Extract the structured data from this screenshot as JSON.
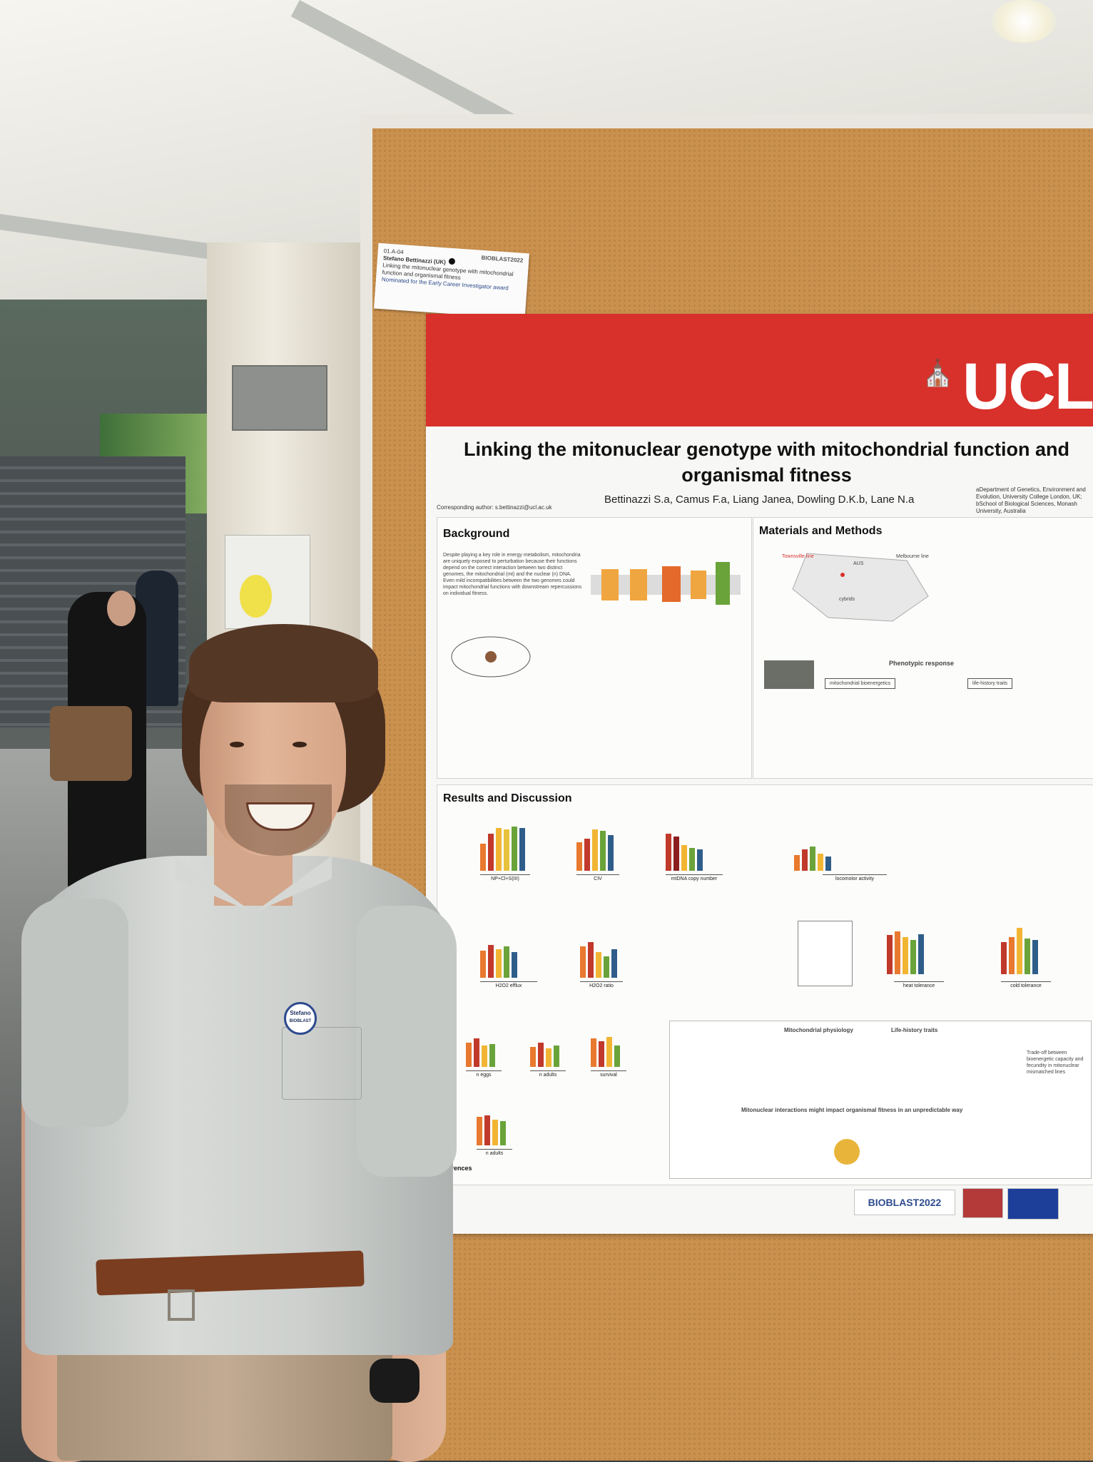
{
  "scene": {
    "description_colors": {
      "cork": "#c9904e",
      "poster_red": "#d8302a",
      "shirt": "#cdd0cd"
    }
  },
  "label_card": {
    "code": "01.A-04",
    "name": "Stefano Bettinazzi (UK)",
    "title_line": "Linking the mitonuclear genotype with mitochondrial function and organismal fitness",
    "award": "Nominated for the Early Career Investigator award",
    "logo": "BIOBLAST2022"
  },
  "poster": {
    "institution": "UCL",
    "title": "Linking the mitonuclear genotype with mitochondrial function and organismal fitness",
    "authors": "Bettinazzi S.a, Camus F.a, Liang Janea, Dowling D.K.b, Lane N.a",
    "contact": "Corresponding author: s.bettinazzi@ucl.ac.uk",
    "affiliation": "aDepartment of Genetics, Environment and Evolution, University College London, UK; bSchool of Biological Sciences, Monash University, Australia",
    "sections": {
      "background": {
        "heading": "Background",
        "text": "Despite playing a key role in energy metabolism, mitochondria are uniquely exposed to perturbation because their functions depend on the correct interaction between two distinct genomes, the mitochondrial (mt) and the nuclear (n) DNA. Even mild incompatibilities between the two genomes could impact mitochondrial functions with downstream repercussions on individual fitness."
      },
      "methods": {
        "heading": "Materials and Methods",
        "labels": [
          "Townsville line",
          "AUS",
          "Melbourne line",
          "cybrids",
          "Phenotypic response",
          "mitochondrial bioenergetics",
          "life-history traits"
        ]
      },
      "results": {
        "heading": "Results and Discussion",
        "panel_labels": [
          "NP+Cl+S(III)",
          "CIV",
          "mtDNA copy number",
          "locomotor activity",
          "H2O2 efflux",
          "H2O2 ratio",
          "heat tolerance",
          "cold tolerance",
          "n eggs",
          "n adults",
          "survival",
          "n adults"
        ]
      },
      "summary": {
        "col1_heading": "Mitochondrial physiology",
        "col2_heading": "Life-history traits",
        "conclusion": "Mitonuclear interactions might impact organismal fitness in an unpredictable way",
        "tradeoff": "Trade-off between bioenergetic capacity and fecundity in mitonuclear mismatched lines"
      },
      "references": {
        "heading": "References"
      }
    },
    "footer_logo": "BIOBLAST2022"
  },
  "person": {
    "badge_name": "Stefano",
    "badge_event": "BIOBLAST"
  }
}
